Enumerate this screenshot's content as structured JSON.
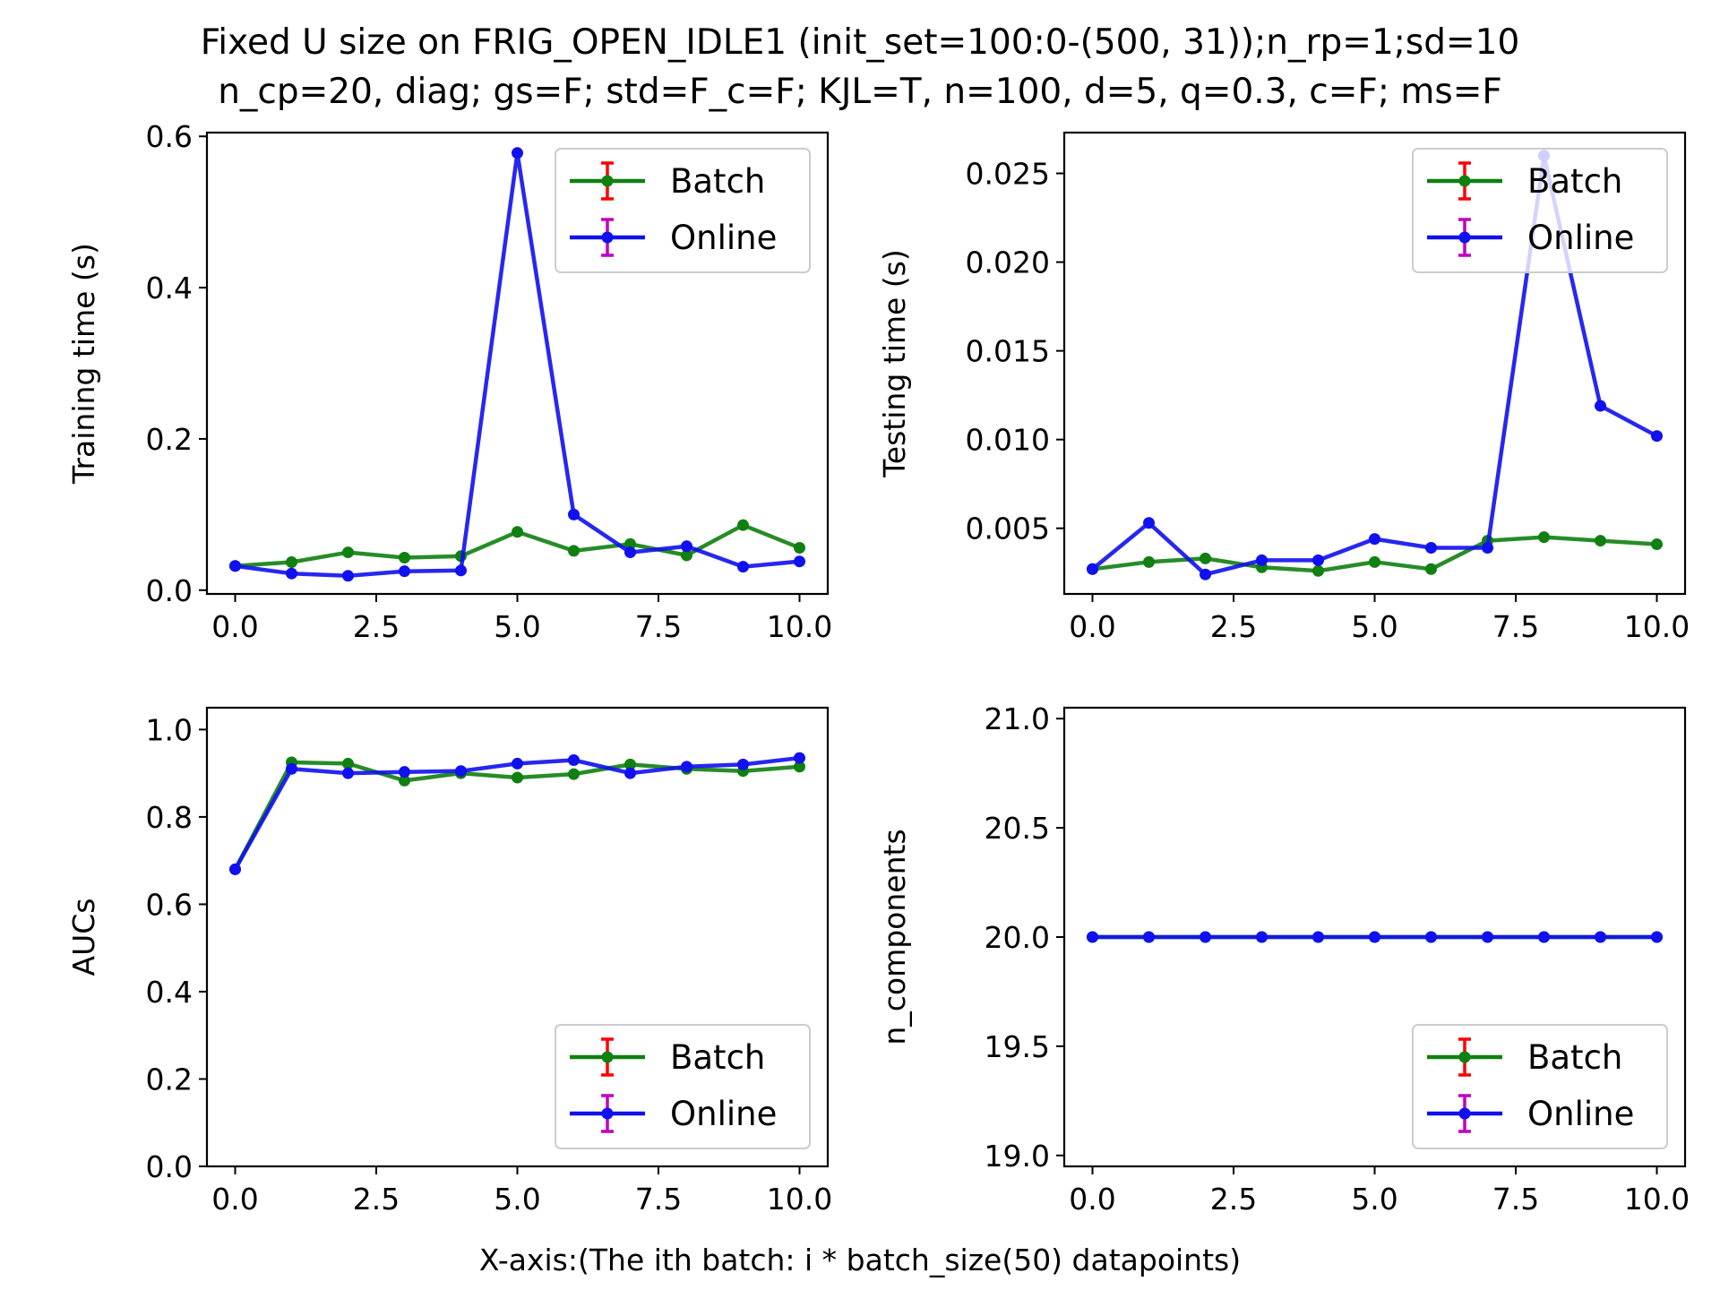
{
  "figure": {
    "title_line1": "Fixed U size on FRIG_OPEN_IDLE1 (init_set=100:0-(500, 31));n_rp=1;sd=10",
    "title_line2": "n_cp=20, diag; gs=F; std=F_c=F; KJL=T, n=100, d=5, q=0.3, c=F; ms=F",
    "xlabel": "X-axis:(The ith batch: i * batch_size(50) datapoints)"
  },
  "colors": {
    "batch_line": "#108010",
    "online_line": "#1010f0",
    "batch_errbar": "#ff0000",
    "online_errbar": "#c000c0"
  },
  "chart_data": [
    {
      "id": "training",
      "type": "line",
      "ylabel": "Training time (s)",
      "ylim": [
        -0.005,
        0.605
      ],
      "yticks": [
        0.0,
        0.2,
        0.4,
        0.6
      ],
      "ytick_labels": [
        "0.0",
        "0.2",
        "0.4",
        "0.6"
      ],
      "xlim": [
        -0.5,
        10.5
      ],
      "xticks": [
        0,
        2.5,
        5,
        7.5,
        10
      ],
      "xtick_labels": [
        "0.0",
        "2.5",
        "5.0",
        "7.5",
        "10.0"
      ],
      "legend": "top-right",
      "x": [
        0,
        1,
        2,
        3,
        4,
        5,
        6,
        7,
        8,
        9,
        10
      ],
      "series": [
        {
          "name": "Batch",
          "values": [
            0.032,
            0.037,
            0.05,
            0.043,
            0.045,
            0.077,
            0.052,
            0.061,
            0.046,
            0.086,
            0.056
          ]
        },
        {
          "name": "Online",
          "values": [
            0.032,
            0.022,
            0.019,
            0.025,
            0.026,
            0.578,
            0.1,
            0.05,
            0.058,
            0.031,
            0.038
          ]
        }
      ]
    },
    {
      "id": "testing",
      "type": "line",
      "ylabel": "Testing time (s)",
      "ylim": [
        0.0013,
        0.0273
      ],
      "yticks": [
        0.005,
        0.01,
        0.015,
        0.02,
        0.025
      ],
      "ytick_labels": [
        "0.005",
        "0.010",
        "0.015",
        "0.020",
        "0.025"
      ],
      "xlim": [
        -0.5,
        10.5
      ],
      "xticks": [
        0,
        2.5,
        5,
        7.5,
        10
      ],
      "xtick_labels": [
        "0.0",
        "2.5",
        "5.0",
        "7.5",
        "10.0"
      ],
      "legend": "top-right",
      "x": [
        0,
        1,
        2,
        3,
        4,
        5,
        6,
        7,
        8,
        9,
        10
      ],
      "series": [
        {
          "name": "Batch",
          "values": [
            0.0027,
            0.0031,
            0.0033,
            0.0028,
            0.0026,
            0.0031,
            0.0027,
            0.0043,
            0.0045,
            0.0043,
            0.0041
          ]
        },
        {
          "name": "Online",
          "values": [
            0.0027,
            0.0053,
            0.0024,
            0.0032,
            0.0032,
            0.0044,
            0.0039,
            0.0039,
            0.026,
            0.0119,
            0.0102
          ]
        }
      ]
    },
    {
      "id": "aucs",
      "type": "line",
      "ylabel": "AUCs",
      "ylim": [
        0.0,
        1.05
      ],
      "yticks": [
        0.0,
        0.2,
        0.4,
        0.6,
        0.8,
        1.0
      ],
      "ytick_labels": [
        "0.0",
        "0.2",
        "0.4",
        "0.6",
        "0.8",
        "1.0"
      ],
      "xlim": [
        -0.5,
        10.5
      ],
      "xticks": [
        0,
        2.5,
        5,
        7.5,
        10
      ],
      "xtick_labels": [
        "0.0",
        "2.5",
        "5.0",
        "7.5",
        "10.0"
      ],
      "legend": "lower-right",
      "x": [
        0,
        1,
        2,
        3,
        4,
        5,
        6,
        7,
        8,
        9,
        10
      ],
      "series": [
        {
          "name": "Batch",
          "values": [
            0.68,
            0.925,
            0.922,
            0.883,
            0.9,
            0.89,
            0.898,
            0.92,
            0.91,
            0.905,
            0.915
          ]
        },
        {
          "name": "Online",
          "values": [
            0.68,
            0.91,
            0.9,
            0.903,
            0.905,
            0.922,
            0.93,
            0.9,
            0.915,
            0.92,
            0.935
          ]
        }
      ]
    },
    {
      "id": "ncomponents",
      "type": "line",
      "ylabel": "n_components",
      "ylim": [
        18.95,
        21.05
      ],
      "yticks": [
        19.0,
        19.5,
        20.0,
        20.5,
        21.0
      ],
      "ytick_labels": [
        "19.0",
        "19.5",
        "20.0",
        "20.5",
        "21.0"
      ],
      "xlim": [
        -0.5,
        10.5
      ],
      "xticks": [
        0,
        2.5,
        5,
        7.5,
        10
      ],
      "xtick_labels": [
        "0.0",
        "2.5",
        "5.0",
        "7.5",
        "10.0"
      ],
      "legend": "lower-right",
      "x": [
        0,
        1,
        2,
        3,
        4,
        5,
        6,
        7,
        8,
        9,
        10
      ],
      "series": [
        {
          "name": "Batch",
          "values": [
            20,
            20,
            20,
            20,
            20,
            20,
            20,
            20,
            20,
            20,
            20
          ]
        },
        {
          "name": "Online",
          "values": [
            20,
            20,
            20,
            20,
            20,
            20,
            20,
            20,
            20,
            20,
            20
          ]
        }
      ]
    }
  ]
}
